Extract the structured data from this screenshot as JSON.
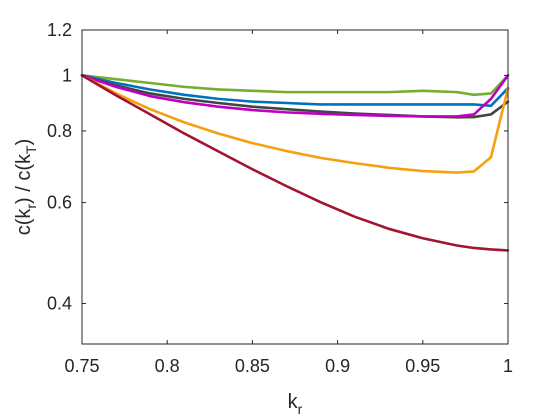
{
  "chart_data": {
    "type": "line",
    "title": "",
    "xlabel": "k",
    "xlabel_sub": "r",
    "ylabel_parts": [
      "c(k",
      "r",
      ") / c(k",
      "T",
      ")"
    ],
    "xlim": [
      0.75,
      1.0
    ],
    "ylim": [
      0.34,
      1.2
    ],
    "yscale": "log",
    "grid": false,
    "legend": "none",
    "xticks": [
      0.75,
      0.8,
      0.85,
      0.9,
      0.95,
      1.0
    ],
    "xtick_labels": [
      "0.75",
      "0.8",
      "0.85",
      "0.9",
      "0.95",
      "1"
    ],
    "yticks": [
      0.4,
      0.6,
      0.8,
      1.0,
      1.2
    ],
    "ytick_labels": [
      "0.4",
      "0.6",
      "0.8",
      "1",
      "1.2"
    ],
    "series": [
      {
        "color": "#77ac30",
        "x": [
          0.75,
          0.77,
          0.79,
          0.81,
          0.83,
          0.85,
          0.87,
          0.89,
          0.91,
          0.93,
          0.95,
          0.97,
          0.98,
          0.99,
          1.0
        ],
        "y": [
          1.0,
          0.985,
          0.97,
          0.955,
          0.945,
          0.94,
          0.935,
          0.935,
          0.935,
          0.935,
          0.94,
          0.935,
          0.925,
          0.93,
          1.0
        ]
      },
      {
        "color": "#0072bd",
        "x": [
          0.75,
          0.77,
          0.79,
          0.81,
          0.83,
          0.85,
          0.87,
          0.89,
          0.91,
          0.93,
          0.95,
          0.97,
          0.98,
          0.99,
          1.0
        ],
        "y": [
          1.0,
          0.97,
          0.945,
          0.925,
          0.91,
          0.9,
          0.895,
          0.89,
          0.89,
          0.89,
          0.89,
          0.89,
          0.89,
          0.885,
          0.95
        ]
      },
      {
        "color": "#444444",
        "x": [
          0.75,
          0.77,
          0.79,
          0.81,
          0.83,
          0.85,
          0.87,
          0.89,
          0.91,
          0.93,
          0.95,
          0.97,
          0.98,
          0.99,
          1.0
        ],
        "y": [
          1.0,
          0.96,
          0.93,
          0.91,
          0.895,
          0.882,
          0.873,
          0.865,
          0.858,
          0.853,
          0.848,
          0.845,
          0.846,
          0.855,
          0.9
        ]
      },
      {
        "color": "#c000c0",
        "x": [
          0.75,
          0.77,
          0.79,
          0.81,
          0.83,
          0.85,
          0.87,
          0.89,
          0.91,
          0.93,
          0.95,
          0.97,
          0.98,
          0.99,
          1.0
        ],
        "y": [
          1.0,
          0.955,
          0.92,
          0.898,
          0.882,
          0.87,
          0.862,
          0.857,
          0.853,
          0.85,
          0.848,
          0.848,
          0.855,
          0.91,
          1.0
        ]
      },
      {
        "color": "#f5a00f",
        "x": [
          0.75,
          0.77,
          0.79,
          0.81,
          0.83,
          0.85,
          0.87,
          0.89,
          0.91,
          0.93,
          0.95,
          0.97,
          0.98,
          0.99,
          1.0
        ],
        "y": [
          1.0,
          0.93,
          0.873,
          0.828,
          0.792,
          0.762,
          0.738,
          0.718,
          0.703,
          0.69,
          0.681,
          0.677,
          0.68,
          0.72,
          0.95
        ]
      },
      {
        "color": "#a2142f",
        "x": [
          0.75,
          0.77,
          0.79,
          0.81,
          0.83,
          0.85,
          0.87,
          0.89,
          0.91,
          0.93,
          0.95,
          0.97,
          0.98,
          0.99,
          1.0
        ],
        "y": [
          1.0,
          0.923,
          0.855,
          0.792,
          0.737,
          0.686,
          0.641,
          0.601,
          0.567,
          0.54,
          0.52,
          0.505,
          0.5,
          0.497,
          0.495
        ]
      }
    ]
  }
}
